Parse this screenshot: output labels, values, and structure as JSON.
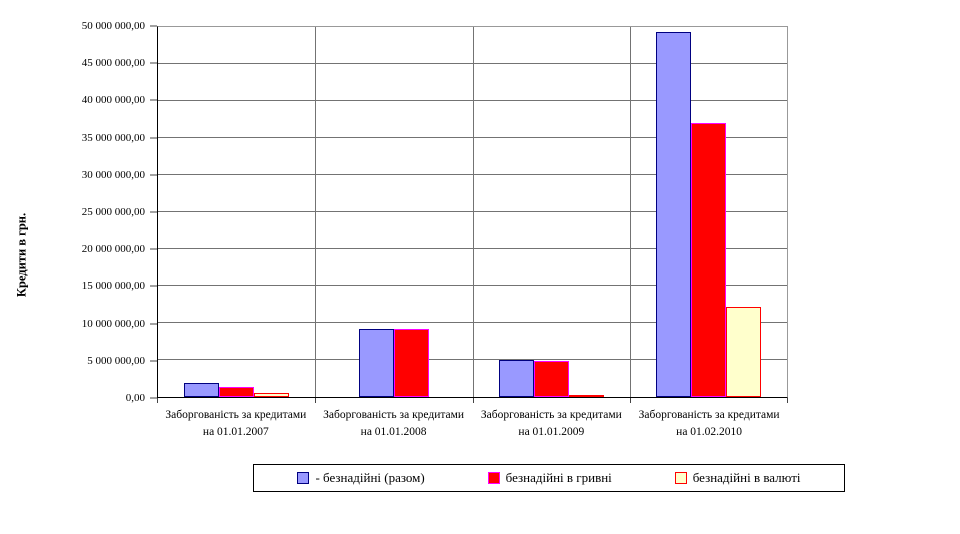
{
  "chart_data": {
    "type": "bar",
    "ylabel": "Кредити в грн.",
    "ylim": [
      0,
      50000000
    ],
    "grid": true,
    "legend_position": "bottom",
    "y_tick_labels": [
      "0,00",
      "5 000 000,00",
      "10 000 000,00",
      "15 000 000,00",
      "20 000 000,00",
      "25 000 000,00",
      "30 000 000,00",
      "35 000 000,00",
      "40 000 000,00",
      "45 000 000,00",
      "50 000 000,00"
    ],
    "categories": [
      "Заборгованість за кредитами на 01.01.2007",
      "Заборгованість за кредитами на 01.01.2008",
      "Заборгованість за кредитами на 01.01.2009",
      "Заборгованість за кредитами на 01.02.2010"
    ],
    "series": [
      {
        "name": "- безнадійні (разом)",
        "fill": "#9999FF",
        "border": "#000080",
        "values": [
          1900000,
          9200000,
          5000000,
          49300000
        ]
      },
      {
        "name": "безнадійні в гривні",
        "fill": "#FF0000",
        "border": "#FF00FF",
        "values": [
          1400000,
          9200000,
          4900000,
          37000000
        ]
      },
      {
        "name": "безнадійні в валюті",
        "fill": "#FFFFCC",
        "border": "#FF0000",
        "values": [
          500000,
          0,
          150000,
          12200000
        ]
      }
    ]
  }
}
